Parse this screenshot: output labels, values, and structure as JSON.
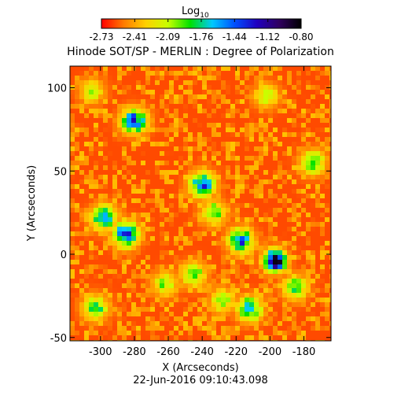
{
  "chart_data": {
    "type": "heatmap",
    "title": "Hinode SOT/SP - MERLIN : Degree of Polarization",
    "subtitle": "22-Jun-2016 09:10:43.098",
    "xlabel": "X (Arcseconds)",
    "ylabel": "Y (Arcseconds)",
    "xlim": [
      -318,
      -164
    ],
    "ylim": [
      -52,
      113
    ],
    "x_ticks": [
      -300,
      -280,
      -260,
      -240,
      -220,
      -200,
      -180
    ],
    "y_ticks": [
      -50,
      0,
      50,
      100
    ],
    "colorbar": {
      "title": "Log",
      "title_subscript": "10",
      "range": [
        -2.73,
        -0.8
      ],
      "tick_labels": [
        "-2.73",
        "-2.41",
        "-2.09",
        "-1.76",
        "-1.44",
        "-1.12",
        "-0.80"
      ],
      "colors": [
        "#ff0000",
        "#ff7a00",
        "#ffd000",
        "#c8ff00",
        "#00e000",
        "#00c8ff",
        "#0050ff",
        "#2000c0",
        "#300060",
        "#000000"
      ]
    },
    "background_level": -2.6,
    "features": [
      {
        "kind": "sunspot",
        "x": -197,
        "y": -4,
        "level": -0.82
      },
      {
        "kind": "plage",
        "x": -285,
        "y": 12,
        "level": -1.25
      },
      {
        "kind": "plage",
        "x": -298,
        "y": 22,
        "level": -1.6
      },
      {
        "kind": "plage",
        "x": -280,
        "y": 80,
        "level": -1.4
      },
      {
        "kind": "plage",
        "x": -240,
        "y": 42,
        "level": -1.45
      },
      {
        "kind": "plage",
        "x": -217,
        "y": 8,
        "level": -1.5
      },
      {
        "kind": "plage",
        "x": -233,
        "y": 25,
        "level": -1.9
      },
      {
        "kind": "plage",
        "x": -212,
        "y": -33,
        "level": -1.6
      },
      {
        "kind": "plage",
        "x": -228,
        "y": -28,
        "level": -2.0
      },
      {
        "kind": "plage",
        "x": -303,
        "y": -32,
        "level": -1.8
      },
      {
        "kind": "plage",
        "x": -185,
        "y": -20,
        "level": -1.9
      },
      {
        "kind": "plage",
        "x": -175,
        "y": 55,
        "level": -1.8
      },
      {
        "kind": "plage",
        "x": -202,
        "y": 95,
        "level": -2.1
      },
      {
        "kind": "plage",
        "x": -245,
        "y": -12,
        "level": -1.9
      },
      {
        "kind": "plage",
        "x": -305,
        "y": 98,
        "level": -2.1
      },
      {
        "kind": "plage",
        "x": -262,
        "y": -18,
        "level": -2.0
      }
    ]
  }
}
